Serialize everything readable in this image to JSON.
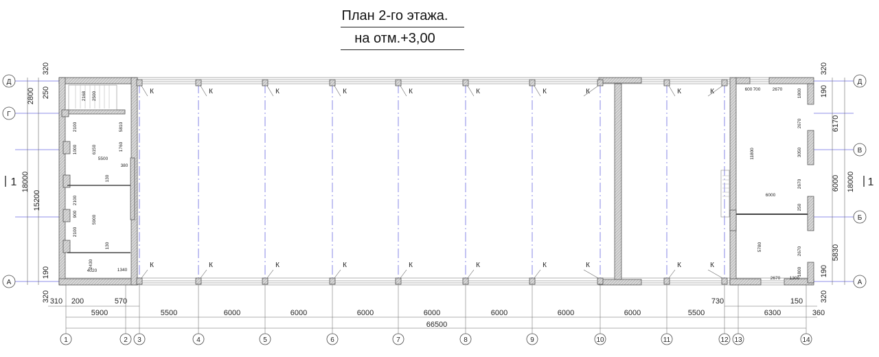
{
  "title": "План 2-го этажа.",
  "subtitle": "на отм.+3,00",
  "colors": {
    "axis_line": "#6a6ae0",
    "wall_fill": "#c8c8c8",
    "line": "#333333"
  },
  "column_axes": [
    "1",
    "2",
    "3",
    "4",
    "5",
    "6",
    "7",
    "8",
    "9",
    "10",
    "11",
    "12",
    "13",
    "14"
  ],
  "row_axes": [
    "Д",
    "Г",
    "В",
    "Б",
    "А"
  ],
  "column_marker": "К",
  "section_marker": "1",
  "dims_bottom_small": [
    "310",
    "200",
    "570",
    "730",
    "150"
  ],
  "dims_bottom_spans": [
    "5900",
    "5500",
    "6000",
    "6000",
    "6000",
    "6000",
    "6000",
    "6000",
    "6000",
    "5500",
    "6300",
    "360"
  ],
  "dim_total": "66500",
  "dims_left": [
    "320",
    "2800",
    "250",
    "18000",
    "15200",
    "190",
    "320"
  ],
  "dims_right": [
    "320",
    "190",
    "6170",
    "6000",
    "5830",
    "190",
    "18000",
    "320"
  ],
  "dims_left_interior": [
    "2168",
    "2500",
    "5810",
    "1760",
    "2100",
    "1000",
    "6150",
    "5500",
    "380",
    "130",
    "2100",
    "900",
    "5900",
    "2100",
    "130",
    "2430",
    "4020",
    "1340"
  ],
  "dims_right_interior": [
    "600",
    "700",
    "2670",
    "1800",
    "2670",
    "3050",
    "11800",
    "2670",
    "6000",
    "250",
    "5780",
    "2670",
    "2670",
    "1300",
    "1800"
  ]
}
